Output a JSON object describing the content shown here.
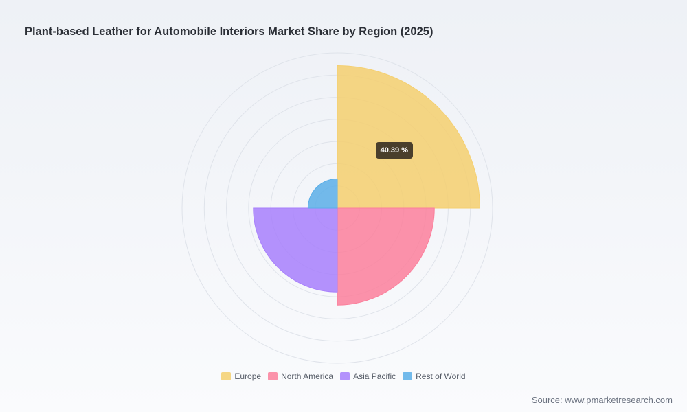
{
  "chart_data": {
    "type": "polar-area",
    "title": "Plant-based Leather for Automobile Interiors Market Share by Region (2025)",
    "categories": [
      "Europe",
      "North America",
      "Asia Pacific",
      "Rest of World"
    ],
    "values": [
      40.39,
      27.5,
      23.8,
      8.3
    ],
    "colors": [
      "#f5cf6f",
      "#fb7f9b",
      "#a77ffb",
      "#5aaee8"
    ],
    "tooltip": {
      "category": "Europe",
      "label": "40.39 %"
    },
    "rmax": 44,
    "ring_count": 7,
    "grid": true,
    "legend_position": "bottom"
  },
  "source": "Source: www.pmarketresearch.com"
}
